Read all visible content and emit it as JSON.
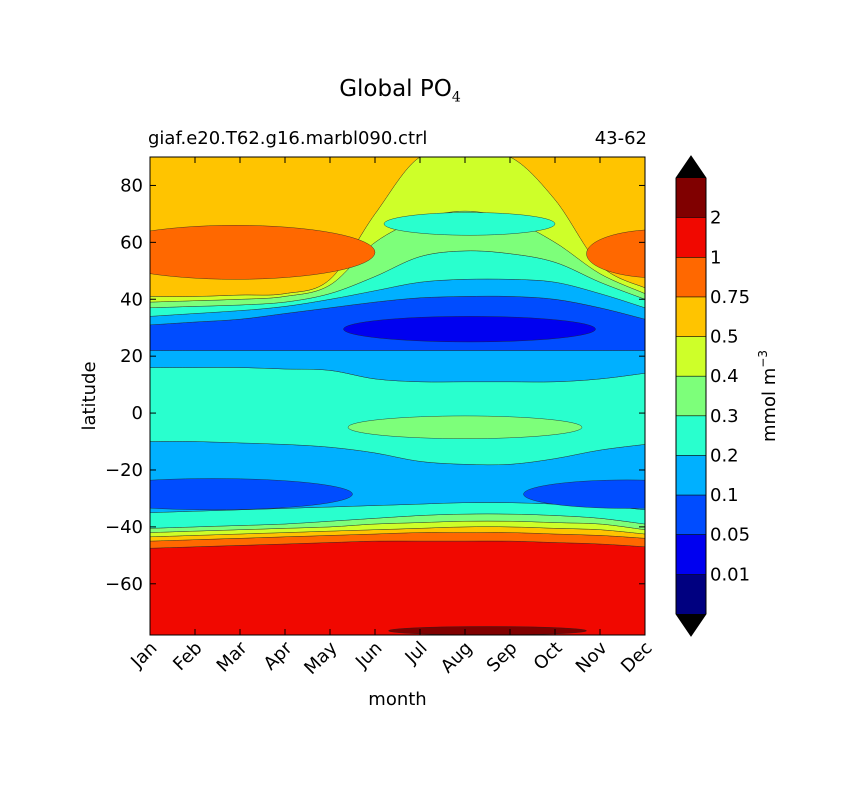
{
  "chart_data": {
    "type": "heatmap",
    "plot_style": "filled-contour",
    "title_main": "Global PO",
    "title_subscript": "4",
    "left_subtitle": "giaf.e20.T62.g16.marbl090.ctrl",
    "right_subtitle": "43-62",
    "xlabel": "month",
    "ylabel": "latitude",
    "colorbar_label": "mmol m",
    "colorbar_label_exponent": "−3",
    "x_categories": [
      "Jan",
      "Feb",
      "Mar",
      "Apr",
      "May",
      "Jun",
      "Jul",
      "Aug",
      "Sep",
      "Oct",
      "Nov",
      "Dec"
    ],
    "xlim": [
      0,
      11
    ],
    "y_ticks": [
      80,
      60,
      40,
      20,
      0,
      -20,
      -40,
      -60
    ],
    "y_tick_labels": [
      "80",
      "60",
      "40",
      "20",
      "0",
      "−20",
      "−40",
      "−60"
    ],
    "ylim": [
      -78,
      90
    ],
    "levels": [
      0,
      0.01,
      0.05,
      0.1,
      0.2,
      0.3,
      0.4,
      0.5,
      0.75,
      1,
      2,
      2.5
    ],
    "level_labels": [
      "0.01",
      "0.05",
      "0.1",
      "0.2",
      "0.3",
      "0.4",
      "0.5",
      "0.75",
      "1",
      "2"
    ],
    "level_colors": [
      "#000080",
      "#0000f0",
      "#004cff",
      "#00b0ff",
      "#29ffce",
      "#7dff7a",
      "#ceff29",
      "#ffc400",
      "#ff6800",
      "#f10800",
      "#800000"
    ],
    "extend_colors": {
      "min": "#000000",
      "max": "#000000"
    },
    "bands": [
      {
        "level": 9,
        "lower": [
          -78,
          -78,
          -78,
          -78,
          -78,
          -78,
          -78,
          -78,
          -78,
          -78,
          -78,
          -78
        ],
        "upper": [
          -47.5,
          -47,
          -46.5,
          -46,
          -45.5,
          -45,
          -45,
          -45,
          -45,
          -45.5,
          -46,
          -47
        ]
      },
      {
        "level": 8,
        "lower": [
          -47.5,
          -47,
          -46.5,
          -46,
          -45.5,
          -45,
          -45,
          -45,
          -45,
          -45.5,
          -46,
          -47
        ],
        "upper": [
          -45,
          -44.5,
          -44,
          -43.5,
          -43,
          -42.5,
          -42,
          -42,
          -42,
          -42.5,
          -43,
          -44
        ]
      },
      {
        "level": 7,
        "lower": [
          -45,
          -44.5,
          -44,
          -43.5,
          -43,
          -42.5,
          -42,
          -42,
          -42,
          -42.5,
          -43,
          -44
        ],
        "upper": [
          -43.5,
          -43,
          -42.5,
          -42,
          -41.5,
          -41,
          -40.5,
          -40,
          -40,
          -40.5,
          -41,
          -42.5
        ]
      },
      {
        "level": 6,
        "lower": [
          -43.5,
          -43,
          -42.5,
          -42,
          -41.5,
          -41,
          -40.5,
          -40,
          -40,
          -40.5,
          -41,
          -42.5
        ],
        "upper": [
          -42,
          -41.5,
          -41,
          -40.5,
          -40,
          -39,
          -38.5,
          -38,
          -38,
          -38.5,
          -39,
          -41
        ]
      },
      {
        "level": 5,
        "lower": [
          -42,
          -41.5,
          -41,
          -40.5,
          -40,
          -39,
          -38.5,
          -38,
          -38,
          -38.5,
          -39,
          -41
        ],
        "upper": [
          -40.5,
          -40,
          -39.5,
          -39,
          -38,
          -37,
          -36,
          -35.5,
          -35.5,
          -36,
          -37,
          -39
        ]
      },
      {
        "level": 4,
        "lower": [
          -40.5,
          -40,
          -39.5,
          -39,
          -38,
          -37,
          -36,
          -35.5,
          -35.5,
          -36,
          -37,
          -39
        ],
        "upper": [
          -35,
          -34.5,
          -34,
          -33.5,
          -33,
          -32.5,
          -32,
          -31.5,
          -31.5,
          -32,
          -32.5,
          -34
        ]
      },
      {
        "level": 3,
        "lower": [
          -35,
          -34.5,
          -34,
          -33.5,
          -33,
          -32.5,
          -32,
          -31.5,
          -31.5,
          -32,
          -32.5,
          -34
        ],
        "upper": [
          -10,
          -10,
          -10.5,
          -11,
          -12,
          -14,
          -17,
          -18,
          -18,
          -16,
          -13,
          -11
        ]
      },
      {
        "level": 4,
        "lower": [
          -10,
          -10,
          -10.5,
          -11,
          -12,
          -14,
          -17,
          -18,
          -18,
          -16,
          -13,
          -11
        ],
        "upper": [
          16,
          16,
          16,
          15.5,
          15,
          12,
          11,
          11,
          11,
          11,
          12,
          14
        ]
      },
      {
        "level": 3,
        "lower": [
          16,
          16,
          16,
          15.5,
          15,
          12,
          11,
          11,
          11,
          11,
          12,
          14
        ],
        "upper": [
          22,
          22,
          22,
          22,
          22,
          22,
          22,
          22,
          22,
          22,
          22,
          22
        ]
      },
      {
        "level": 2,
        "lower": [
          22,
          22,
          22,
          22,
          22,
          22,
          22,
          22,
          22,
          22,
          22,
          22
        ],
        "upper": [
          31,
          32,
          33,
          35,
          37,
          39,
          40.5,
          41,
          41,
          40,
          37,
          33
        ]
      },
      {
        "level": 3,
        "lower": [
          31,
          32,
          33,
          35,
          37,
          39,
          40.5,
          41,
          41,
          40,
          37,
          33
        ],
        "upper": [
          34,
          35,
          36,
          37.5,
          40,
          43,
          46,
          47,
          47,
          46,
          42,
          37
        ]
      },
      {
        "level": 4,
        "lower": [
          34,
          35,
          36,
          37.5,
          40,
          43,
          46,
          47,
          47,
          46,
          42,
          37
        ],
        "upper": [
          37,
          37.5,
          38,
          39,
          42,
          48,
          55,
          57,
          56,
          53,
          46,
          40
        ]
      },
      {
        "level": 5,
        "lower": [
          37,
          37.5,
          38,
          39,
          42,
          48,
          55,
          57,
          56,
          53,
          46,
          40
        ],
        "upper": [
          39,
          39.5,
          40,
          41,
          45,
          60,
          68,
          71,
          68,
          60,
          49,
          42
        ]
      },
      {
        "level": 6,
        "lower": [
          39,
          39.5,
          40,
          41,
          45,
          60,
          68,
          71,
          68,
          60,
          49,
          42
        ],
        "upper": [
          41,
          41,
          41.5,
          42,
          47,
          70,
          90,
          90,
          90,
          75,
          52,
          44
        ]
      },
      {
        "level": 7,
        "lower": [
          41,
          41,
          41.5,
          42,
          47,
          70,
          90,
          90,
          90,
          75,
          52,
          44
        ],
        "upper": [
          90,
          90,
          90,
          90,
          90,
          90,
          90,
          90,
          90,
          90,
          90,
          90
        ]
      }
    ],
    "blobs": [
      {
        "level": 8,
        "cx": 1.9,
        "cy": 56.5,
        "rx": 3.1,
        "ry": 9.5
      },
      {
        "level": 8,
        "cx": 11.3,
        "cy": 56,
        "rx": 1.6,
        "ry": 8.5
      },
      {
        "level": 4,
        "cx": 7.1,
        "cy": 66.5,
        "rx": 1.9,
        "ry": 4
      },
      {
        "level": 5,
        "cx": 7.0,
        "cy": -5,
        "rx": 2.6,
        "ry": 4
      },
      {
        "level": 2,
        "cx": 1.4,
        "cy": -28.5,
        "rx": 3.1,
        "ry": 5.5
      },
      {
        "level": 2,
        "cx": 10.6,
        "cy": -28.5,
        "rx": 2.3,
        "ry": 5
      },
      {
        "level": 1,
        "cx": 7.1,
        "cy": 29.5,
        "rx": 2.8,
        "ry": 4.5
      },
      {
        "level": 10,
        "cx": 7.5,
        "cy": -76.5,
        "rx": 2.2,
        "ry": 1.5
      }
    ]
  }
}
